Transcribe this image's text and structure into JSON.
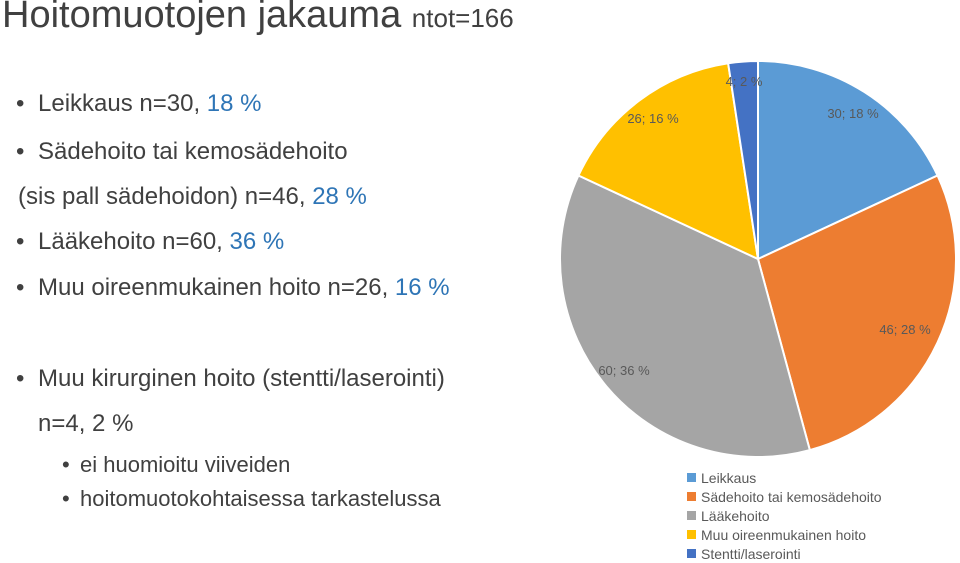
{
  "title": "Hoitomuotojen jakauma",
  "title_sub": "ntot=166",
  "bullets": [
    {
      "text": "Leikkaus n=30, ",
      "pct": "18 %"
    },
    {
      "text": "Sädehoito tai kemosädehoito"
    },
    {
      "text": "(sis pall sädehoidon) n=46, ",
      "pct": "28 %"
    },
    {
      "text": "Lääkehoito n=60, ",
      "pct": "36 %"
    },
    {
      "text": "Muu oireenmukainen hoito n=26, ",
      "pct": "16 %"
    },
    {
      "text": "Muu kirurginen hoito (stentti/laserointi)"
    },
    {
      "text": "n=4, 2 %"
    },
    {
      "text": "ei huomioitu viiveiden"
    },
    {
      "text": "hoitomuotokohtaisessa tarkastelussa"
    }
  ],
  "chart_data": {
    "type": "pie",
    "categories": [
      "Leikkaus",
      "Sädehoito tai kemosädehoito",
      "Lääkehoito",
      "Muu oireenmukainen hoito",
      "Stentti/laserointi"
    ],
    "values": [
      30,
      46,
      60,
      26,
      4
    ],
    "percents": [
      18,
      28,
      36,
      16,
      2
    ],
    "data_labels": [
      "30; 18 %",
      "46; 28 %",
      "60; 36 %",
      "26; 16 %",
      "4; 2 %"
    ],
    "colors": [
      "#5b9bd5",
      "#ed7d31",
      "#a5a5a5",
      "#ffc000",
      "#4472c4"
    ],
    "legend_position": "bottom-right"
  }
}
